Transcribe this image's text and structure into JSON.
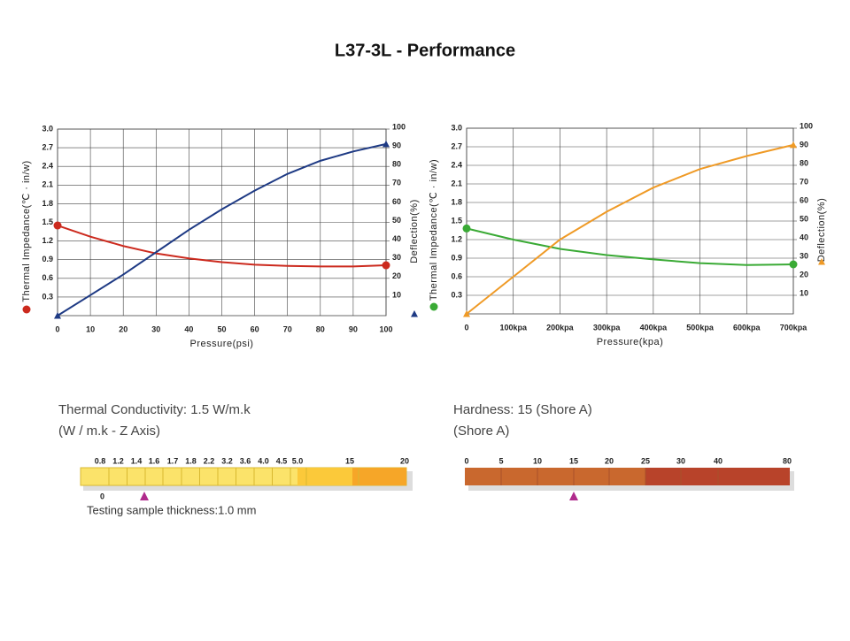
{
  "title": "L37-3L - Performance",
  "chart_data": [
    {
      "type": "line",
      "xlabel": "Pressure(psi)",
      "ylabel": "Thermal Impedance(℃ · in/w)",
      "y2label": "Deflection(%)",
      "x": [
        0,
        10,
        20,
        30,
        40,
        50,
        60,
        70,
        80,
        90,
        100
      ],
      "xlim": [
        0,
        100
      ],
      "xticks": [
        0,
        10,
        20,
        30,
        40,
        50,
        60,
        70,
        80,
        90,
        100
      ],
      "ylim": [
        0,
        3
      ],
      "yticks": [
        0.3,
        0.6,
        0.9,
        1.2,
        1.5,
        1.8,
        2.1,
        2.4,
        2.7,
        {
          "value": 3,
          "label": "3.0"
        }
      ],
      "y2lim": [
        0,
        100
      ],
      "y2ticks": [
        10,
        20,
        30,
        40,
        50,
        60,
        70,
        80,
        90,
        100
      ],
      "grid": true,
      "series": [
        {
          "color": "#cc2a1e",
          "marker": "circle",
          "values": [
            1.45,
            1.27,
            1.12,
            1.0,
            0.92,
            0.86,
            0.82,
            0.8,
            0.79,
            0.79,
            0.81
          ]
        },
        {
          "color": "#1e3a84",
          "marker": "triangle",
          "axis": "y2",
          "values": [
            0,
            11,
            22,
            34,
            46,
            57,
            67,
            76,
            83,
            88,
            92
          ]
        }
      ]
    },
    {
      "type": "line",
      "xlabel": "Pressure(kpa)",
      "ylabel": "Thermal Impedance(℃ · in/w)",
      "y2label": "Deflection(%)",
      "x": [
        0,
        100,
        200,
        300,
        400,
        500,
        600,
        700
      ],
      "xlim": [
        0,
        700
      ],
      "xticks": [
        0,
        {
          "value": 100,
          "label": "100kpa"
        },
        {
          "value": 200,
          "label": "200kpa"
        },
        {
          "value": 300,
          "label": "300kpa"
        },
        {
          "value": 400,
          "label": "400kpa"
        },
        {
          "value": 500,
          "label": "500kpa"
        },
        {
          "value": 600,
          "label": "600kpa"
        },
        {
          "value": 700,
          "label": "700kpa"
        }
      ],
      "ylim": [
        0,
        3
      ],
      "yticks": [
        0.3,
        0.6,
        0.9,
        1.2,
        1.5,
        1.8,
        2.1,
        2.4,
        2.7,
        {
          "value": 3,
          "label": "3.0"
        }
      ],
      "y2lim": [
        0,
        100
      ],
      "y2ticks": [
        10,
        20,
        30,
        40,
        50,
        60,
        70,
        80,
        90,
        100
      ],
      "grid": true,
      "series": [
        {
          "color": "#3aaa35",
          "marker": "circle",
          "values": [
            1.38,
            1.2,
            1.05,
            0.95,
            0.88,
            0.82,
            0.79,
            0.8
          ]
        },
        {
          "color": "#ef9a26",
          "marker": "triangle",
          "axis": "y2",
          "values": [
            0,
            20,
            40,
            55,
            68,
            78,
            85,
            91
          ]
        }
      ]
    }
  ],
  "conductivity": {
    "title": "Thermal Conductivity: 1.5 W/m.k",
    "subtitle": "(W / m.k - Z Axis)",
    "labels": [
      "0.8",
      "1.2",
      "1.4",
      "1.6",
      "1.7",
      "1.8",
      "2.2",
      "3.2",
      "3.6",
      "4.0",
      "4.5",
      "5.0",
      "15",
      "20"
    ],
    "zero": "0",
    "note": "Testing sample thickness:1.0 mm"
  },
  "hardness": {
    "title": "Hardness: 15 (Shore A)",
    "subtitle": "(Shore A)",
    "labels": [
      "0",
      "5",
      "10",
      "15",
      "20",
      "25",
      "30",
      "40",
      "80"
    ]
  }
}
